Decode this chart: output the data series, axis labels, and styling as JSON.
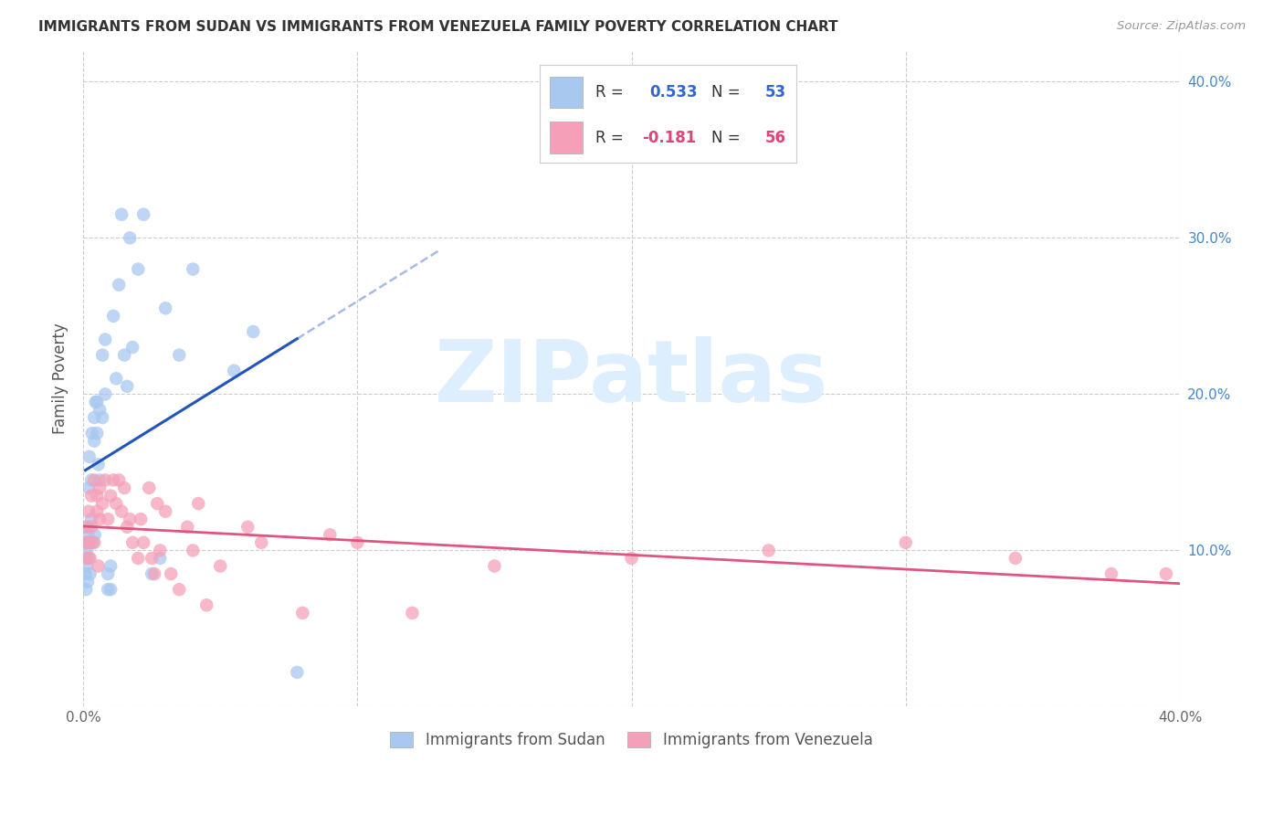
{
  "title": "IMMIGRANTS FROM SUDAN VS IMMIGRANTS FROM VENEZUELA FAMILY POVERTY CORRELATION CHART",
  "source": "Source: ZipAtlas.com",
  "ylabel": "Family Poverty",
  "xlim": [
    0.0,
    0.4
  ],
  "ylim": [
    0.0,
    0.42
  ],
  "yticks": [
    0.0,
    0.1,
    0.2,
    0.3,
    0.4
  ],
  "ytick_labels_right": [
    "",
    "10.0%",
    "20.0%",
    "30.0%",
    "40.0%"
  ],
  "xtick_positions": [
    0.0,
    0.1,
    0.2,
    0.3,
    0.4
  ],
  "xtick_labels": [
    "0.0%",
    "",
    "",
    "",
    "40.0%"
  ],
  "r_sudan": 0.533,
  "n_sudan": 53,
  "r_venezuela": -0.181,
  "n_venezuela": 56,
  "sudan_color": "#a8c8f0",
  "venezuela_color": "#f5a0b8",
  "sudan_line_color": "#2255bb",
  "venezuela_line_color": "#e05580",
  "sudan_line_dash_color": "#aabbdd",
  "background_color": "#ffffff",
  "watermark_text": "ZIPatlas",
  "watermark_color": "#ddeeff",
  "sudan_x": [
    0.0008,
    0.0009,
    0.001,
    0.001,
    0.0012,
    0.0013,
    0.0015,
    0.0016,
    0.0017,
    0.002,
    0.002,
    0.0022,
    0.0023,
    0.0025,
    0.003,
    0.003,
    0.0032,
    0.0035,
    0.004,
    0.004,
    0.0042,
    0.0045,
    0.005,
    0.005,
    0.0055,
    0.006,
    0.006,
    0.007,
    0.007,
    0.008,
    0.008,
    0.009,
    0.009,
    0.01,
    0.01,
    0.011,
    0.012,
    0.013,
    0.014,
    0.015,
    0.016,
    0.017,
    0.018,
    0.02,
    0.022,
    0.025,
    0.028,
    0.03,
    0.035,
    0.04,
    0.055,
    0.062,
    0.078
  ],
  "sudan_y": [
    0.085,
    0.095,
    0.105,
    0.075,
    0.09,
    0.1,
    0.115,
    0.08,
    0.11,
    0.095,
    0.14,
    0.16,
    0.105,
    0.085,
    0.145,
    0.12,
    0.175,
    0.105,
    0.17,
    0.185,
    0.11,
    0.195,
    0.175,
    0.195,
    0.155,
    0.19,
    0.145,
    0.225,
    0.185,
    0.235,
    0.2,
    0.085,
    0.075,
    0.09,
    0.075,
    0.25,
    0.21,
    0.27,
    0.315,
    0.225,
    0.205,
    0.3,
    0.23,
    0.28,
    0.315,
    0.085,
    0.095,
    0.255,
    0.225,
    0.28,
    0.215,
    0.24,
    0.022
  ],
  "venezuela_x": [
    0.001,
    0.001,
    0.0015,
    0.002,
    0.002,
    0.0025,
    0.003,
    0.003,
    0.004,
    0.004,
    0.005,
    0.005,
    0.0055,
    0.006,
    0.006,
    0.007,
    0.008,
    0.009,
    0.01,
    0.011,
    0.012,
    0.013,
    0.014,
    0.015,
    0.016,
    0.017,
    0.018,
    0.02,
    0.021,
    0.022,
    0.024,
    0.025,
    0.026,
    0.027,
    0.028,
    0.03,
    0.032,
    0.035,
    0.038,
    0.04,
    0.042,
    0.045,
    0.05,
    0.06,
    0.065,
    0.08,
    0.09,
    0.1,
    0.12,
    0.15,
    0.2,
    0.25,
    0.3,
    0.34,
    0.375,
    0.395
  ],
  "venezuela_y": [
    0.105,
    0.115,
    0.095,
    0.125,
    0.105,
    0.095,
    0.135,
    0.115,
    0.145,
    0.105,
    0.135,
    0.125,
    0.09,
    0.12,
    0.14,
    0.13,
    0.145,
    0.12,
    0.135,
    0.145,
    0.13,
    0.145,
    0.125,
    0.14,
    0.115,
    0.12,
    0.105,
    0.095,
    0.12,
    0.105,
    0.14,
    0.095,
    0.085,
    0.13,
    0.1,
    0.125,
    0.085,
    0.075,
    0.115,
    0.1,
    0.13,
    0.065,
    0.09,
    0.115,
    0.105,
    0.06,
    0.11,
    0.105,
    0.06,
    0.09,
    0.095,
    0.1,
    0.105,
    0.095,
    0.085,
    0.085
  ],
  "legend_r_sudan_text": "R = 0.533",
  "legend_n_sudan_text": "N = 53",
  "legend_r_venezuela_text": "R = -0.181",
  "legend_n_venezuela_text": "N = 56",
  "legend_value_color_blue": "#3366cc",
  "legend_value_color_pink": "#dd4477",
  "legend_label_color": "#333333"
}
